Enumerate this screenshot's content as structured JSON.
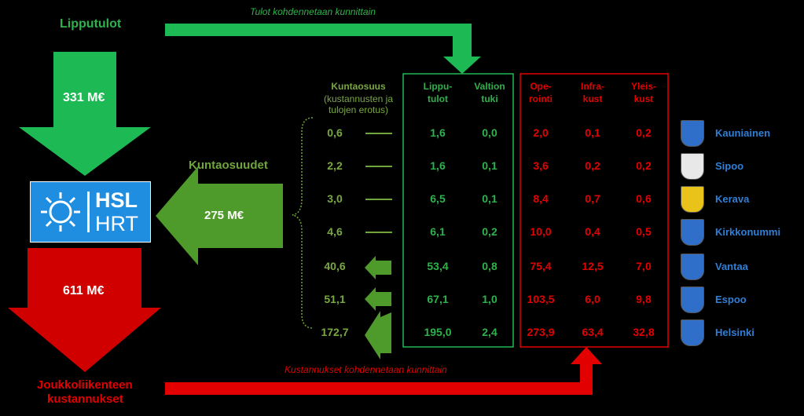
{
  "labels": {
    "lipputulot": "Lipputulot",
    "top_arrow_text": "Tulot kohdennetaan kunnittain",
    "amount_lipputulot": "331 M€",
    "kuntaosuudet": "Kuntaosuudet",
    "amount_kuntaosuudet": "275 M€",
    "amount_costs": "611 M€",
    "costs_line1": "Joukkoliikenteen",
    "costs_line2": "kustannukset",
    "bottom_arrow_text": "Kustannukset kohdennetaan kunnittain"
  },
  "logo": {
    "line1": "HSL",
    "line2": "HRT"
  },
  "headers": {
    "kuntaosuus": "Kuntaosuus",
    "kuntaosuus_sub1": "(kustannusten ja",
    "kuntaosuus_sub2": "tulojen erotus)",
    "lippu1": "Lippu-",
    "lippu2": "tulot",
    "valtion1": "Valtion",
    "valtion2": "tuki",
    "oper1": "Ope-",
    "oper2": "rointi",
    "infra1": "Infra-",
    "infra2": "kust",
    "yleis1": "Yleis-",
    "yleis2": "kust"
  },
  "rows": [
    {
      "municipality": "Kauniainen",
      "kuntaosuus": "0,6",
      "lipputulot": "1,6",
      "valtion": "0,0",
      "operointi": "2,0",
      "infra": "0,1",
      "yleis": "0,2",
      "crest": "#2f6fc9"
    },
    {
      "municipality": "Sipoo",
      "kuntaosuus": "2,2",
      "lipputulot": "1,6",
      "valtion": "0,1",
      "operointi": "3,6",
      "infra": "0,2",
      "yleis": "0,2",
      "crest": "#e8e8e8"
    },
    {
      "municipality": "Kerava",
      "kuntaosuus": "3,0",
      "lipputulot": "6,5",
      "valtion": "0,1",
      "operointi": "8,4",
      "infra": "0,7",
      "yleis": "0,6",
      "crest": "#e9c21a"
    },
    {
      "municipality": "Kirkkonummi",
      "kuntaosuus": "4,6",
      "lipputulot": "6,1",
      "valtion": "0,2",
      "operointi": "10,0",
      "infra": "0,4",
      "yleis": "0,5",
      "crest": "#2f6fc9"
    },
    {
      "municipality": "Vantaa",
      "kuntaosuus": "40,6",
      "lipputulot": "53,4",
      "valtion": "0,8",
      "operointi": "75,4",
      "infra": "12,5",
      "yleis": "7,0",
      "crest": "#2f6fc9"
    },
    {
      "municipality": "Espoo",
      "kuntaosuus": "51,1",
      "lipputulot": "67,1",
      "valtion": "1,0",
      "operointi": "103,5",
      "infra": "6,0",
      "yleis": "9,8",
      "crest": "#2f6fc9"
    },
    {
      "municipality": "Helsinki",
      "kuntaosuus": "172,7",
      "lipputulot": "195,0",
      "valtion": "2,4",
      "operointi": "273,9",
      "infra": "63,4",
      "yleis": "32,8",
      "crest": "#2f6fc9"
    }
  ],
  "colors": {
    "green": "#1db954",
    "olive": "#5a9a2a",
    "red": "#e30000",
    "hsl_blue": "#1f8ee0"
  }
}
